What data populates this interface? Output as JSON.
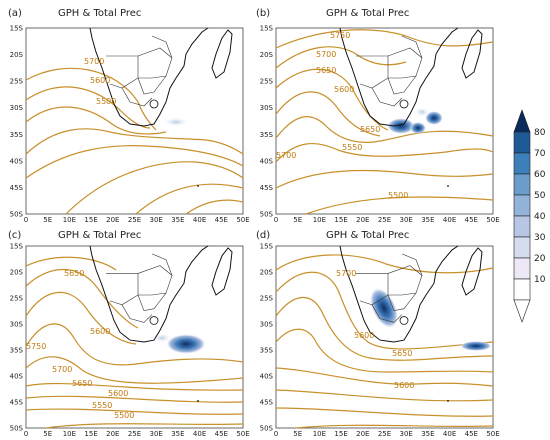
{
  "figure": {
    "panels": [
      {
        "id": "a",
        "label": "(a)",
        "title": "GPH & Total Prec",
        "contour_labels": [
          "5700",
          "5600",
          "5500"
        ]
      },
      {
        "id": "b",
        "label": "(b)",
        "title": "GPH & Total Prec",
        "contour_labels": [
          "5750",
          "5700",
          "5650",
          "5600",
          "5650",
          "5550",
          "5700",
          "5500"
        ]
      },
      {
        "id": "c",
        "label": "(c)",
        "title": "GPH & Total Prec",
        "contour_labels": [
          "5650",
          "5600",
          "5750",
          "5700",
          "5650",
          "5600",
          "5550",
          "5500"
        ]
      },
      {
        "id": "d",
        "label": "(d)",
        "title": "GPH & Total Prec",
        "contour_labels": [
          "5700",
          "5600",
          "5650",
          "5600"
        ]
      }
    ],
    "x_ticks": [
      "0",
      "5E",
      "10E",
      "15E",
      "20E",
      "25E",
      "30E",
      "35E",
      "40E",
      "45E",
      "50E"
    ],
    "y_ticks": [
      "15S",
      "20S",
      "25S",
      "30S",
      "35S",
      "40S",
      "45S",
      "50S"
    ],
    "colorbar": {
      "ticks": [
        "80",
        "70",
        "60",
        "50",
        "40",
        "30",
        "20",
        "10"
      ],
      "colors": [
        "#0a2a5c",
        "#1d5a96",
        "#3d7fb8",
        "#6a9ccc",
        "#94b3da",
        "#b7c6e4",
        "#d6dcf0",
        "#ece8f6",
        "#ffffff"
      ]
    },
    "colors": {
      "contour": "#c8902a",
      "coast": "#111111",
      "precip_dark": "#10386e",
      "precip_light": "#8aa9d6"
    }
  }
}
